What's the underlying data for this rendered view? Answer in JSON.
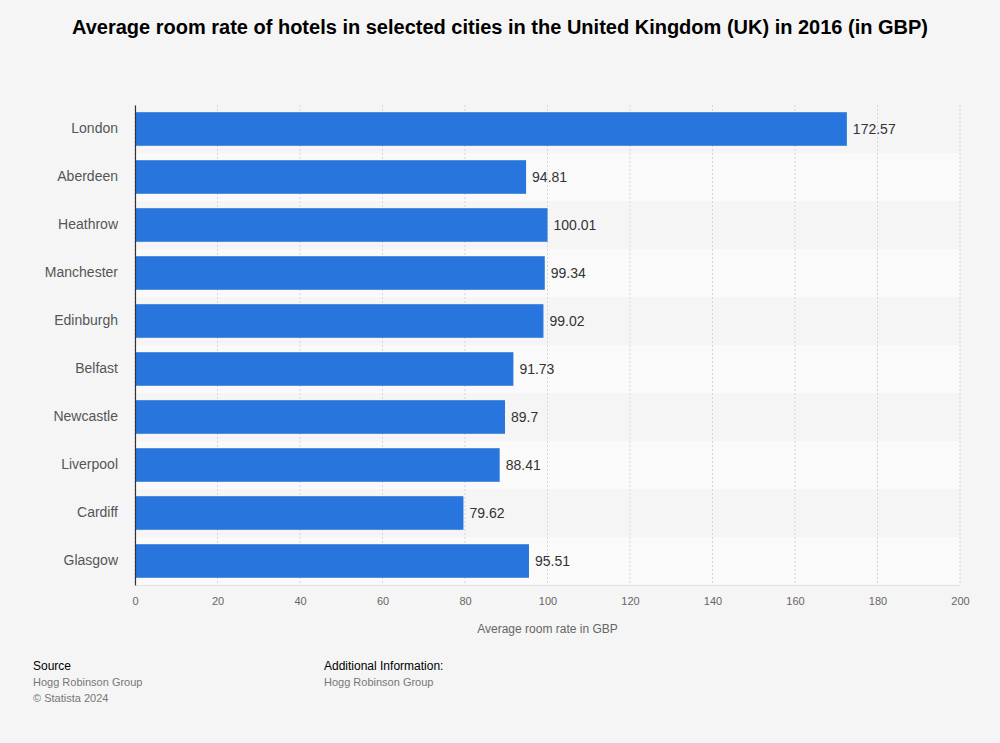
{
  "chart_data": {
    "type": "bar",
    "orientation": "horizontal",
    "title": "Average room rate of hotels in selected cities in the United Kingdom (UK) in 2016 (in GBP)",
    "x_label": "Average room rate in GBP",
    "categories": [
      "London",
      "Aberdeen",
      "Heathrow",
      "Manchester",
      "Edinburgh",
      "Belfast",
      "Newcastle",
      "Liverpool",
      "Cardiff",
      "Glasgow"
    ],
    "values": [
      172.57,
      94.81,
      100.01,
      99.34,
      99.02,
      91.73,
      89.7,
      88.41,
      79.62,
      95.51
    ],
    "color": "#2876dd",
    "xlim": [
      0,
      200
    ],
    "xticks": [
      0,
      20,
      40,
      60,
      80,
      100,
      120,
      140,
      160,
      180,
      200
    ],
    "grid": true,
    "data_labels": true,
    "annotations": [
      "Source",
      "Hogg Robinson Group",
      "© Statista 2024",
      "Additional Information:",
      "Hogg Robinson Group"
    ]
  }
}
